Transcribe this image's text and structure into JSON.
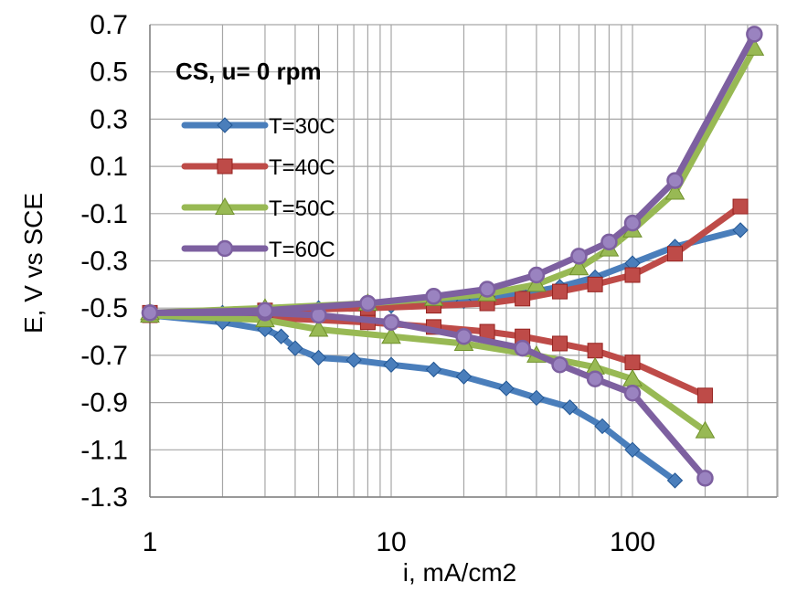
{
  "chart_data": {
    "type": "line",
    "title": "",
    "annotation": "CS, u= 0 rpm",
    "xlabel": "i, mA/cm2",
    "ylabel": "E, V vs SCE",
    "xscale": "log",
    "xlim": [
      1,
      600
    ],
    "ylim": [
      -1.3,
      0.7
    ],
    "x_ticks": [
      1,
      10,
      100
    ],
    "x_tick_labels": [
      "1",
      "10",
      "100"
    ],
    "y_ticks": [
      0.7,
      0.5,
      0.3,
      0.1,
      -0.1,
      -0.3,
      -0.5,
      -0.7,
      -0.9,
      -1.1,
      -1.3
    ],
    "y_tick_labels": [
      "0.7",
      "0.5",
      "0.3",
      "0.1",
      "-0.1",
      "-0.3",
      "-0.5",
      "-0.7",
      "-0.9",
      "-1.1",
      "-1.3"
    ],
    "grid": true,
    "legend_position": "top-left",
    "series": [
      {
        "name": "T=30C",
        "color": "#4a7ebb",
        "marker": "diamond",
        "anodic": {
          "x": [
            1,
            2,
            5,
            10,
            20,
            35,
            50,
            70,
            100,
            150,
            280
          ],
          "y": [
            -0.53,
            -0.52,
            -0.5,
            -0.49,
            -0.47,
            -0.44,
            -0.41,
            -0.37,
            -0.31,
            -0.24,
            -0.17
          ]
        },
        "cathodic": {
          "x": [
            1,
            2,
            3,
            3.5,
            4,
            5,
            7,
            10,
            15,
            20,
            30,
            40,
            55,
            75,
            100,
            150
          ],
          "y": [
            -0.53,
            -0.56,
            -0.59,
            -0.62,
            -0.67,
            -0.71,
            -0.72,
            -0.74,
            -0.76,
            -0.79,
            -0.84,
            -0.88,
            -0.92,
            -1.0,
            -1.1,
            -1.23
          ]
        }
      },
      {
        "name": "T=40C",
        "color": "#be4b48",
        "marker": "square",
        "anodic": {
          "x": [
            1,
            3,
            8,
            15,
            25,
            35,
            50,
            70,
            100,
            150,
            280
          ],
          "y": [
            -0.52,
            -0.51,
            -0.5,
            -0.49,
            -0.48,
            -0.46,
            -0.43,
            -0.4,
            -0.36,
            -0.27,
            -0.07
          ]
        },
        "cathodic": {
          "x": [
            1,
            3,
            8,
            15,
            25,
            35,
            50,
            70,
            100,
            200
          ],
          "y": [
            -0.53,
            -0.54,
            -0.56,
            -0.58,
            -0.6,
            -0.62,
            -0.65,
            -0.68,
            -0.73,
            -0.87
          ]
        }
      },
      {
        "name": "T=50C",
        "color": "#98b954",
        "marker": "triangle",
        "anodic": {
          "x": [
            1,
            3,
            8,
            15,
            25,
            40,
            60,
            80,
            100,
            150,
            320
          ],
          "y": [
            -0.52,
            -0.5,
            -0.48,
            -0.46,
            -0.44,
            -0.4,
            -0.33,
            -0.25,
            -0.17,
            -0.01,
            0.6
          ]
        },
        "cathodic": {
          "x": [
            1,
            3,
            5,
            10,
            20,
            40,
            70,
            100,
            200
          ],
          "y": [
            -0.53,
            -0.55,
            -0.59,
            -0.62,
            -0.65,
            -0.7,
            -0.75,
            -0.8,
            -1.02
          ]
        }
      },
      {
        "name": "T=60C",
        "color": "#7d60a0",
        "marker": "circle",
        "anodic": {
          "x": [
            1,
            3,
            8,
            15,
            25,
            40,
            60,
            80,
            100,
            150,
            320
          ],
          "y": [
            -0.52,
            -0.51,
            -0.48,
            -0.45,
            -0.42,
            -0.36,
            -0.28,
            -0.22,
            -0.14,
            0.04,
            0.66
          ]
        },
        "cathodic": {
          "x": [
            1,
            3,
            5,
            10,
            20,
            35,
            50,
            70,
            100,
            200
          ],
          "y": [
            -0.52,
            -0.52,
            -0.53,
            -0.56,
            -0.62,
            -0.67,
            -0.74,
            -0.8,
            -0.86,
            -1.22
          ]
        }
      }
    ]
  }
}
